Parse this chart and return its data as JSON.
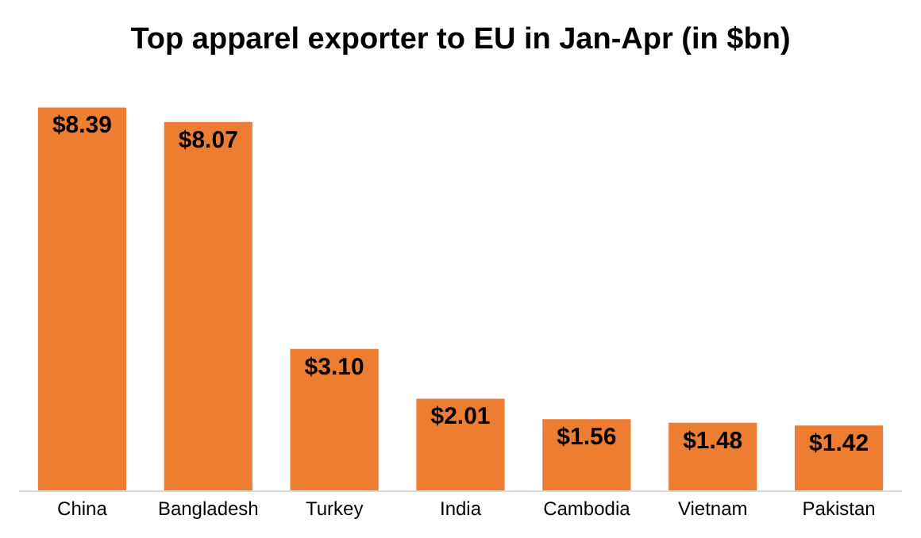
{
  "chart_data": {
    "type": "bar",
    "title": "Top apparel exporter to EU in Jan-Apr (in $bn)",
    "categories": [
      "China",
      "Bangladesh",
      "Turkey",
      "India",
      "Cambodia",
      "Vietnam",
      "Pakistan"
    ],
    "values": [
      8.39,
      8.07,
      3.1,
      2.01,
      1.56,
      1.48,
      1.42
    ],
    "value_labels": [
      "$8.39",
      "$8.07",
      "$3.10",
      "$2.01",
      "$1.56",
      "$1.48",
      "$1.42"
    ],
    "color": "#ed7d31",
    "tick_labels": "x"
  }
}
